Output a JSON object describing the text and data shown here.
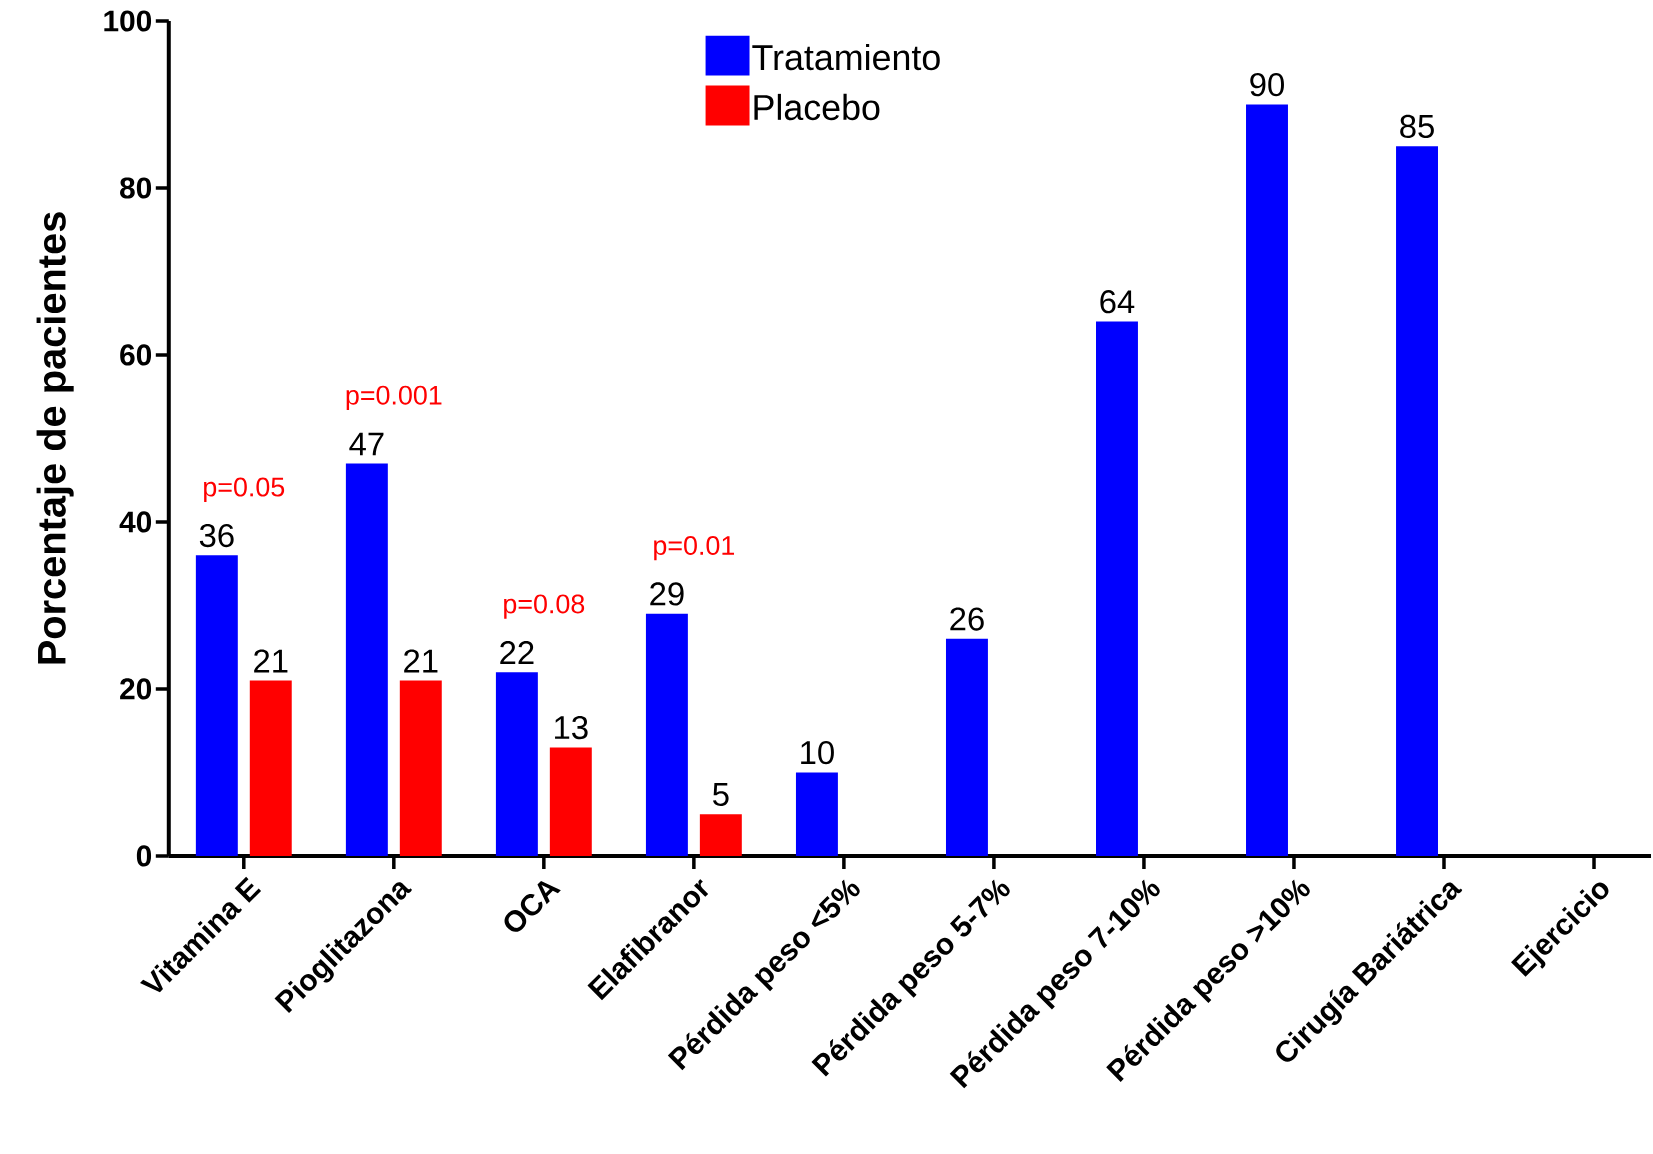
{
  "chart_data": {
    "type": "bar",
    "ylabel": "Porcentaje de pacientes",
    "categories": [
      "Vitamina E",
      "Pioglitazona",
      "OCA",
      "Elafibranor",
      "Pérdida peso <5%",
      "Pérdida peso 5-7%",
      "Pérdida peso 7-10%",
      "Pérdida peso >10%",
      "Cirugía Bariátrica",
      "Ejercicio"
    ],
    "series": [
      {
        "name": "Tratamiento",
        "color": "#0000ff",
        "values": [
          36,
          47,
          22,
          29,
          10,
          26,
          64,
          90,
          85,
          null
        ]
      },
      {
        "name": "Placebo",
        "color": "#ff0000",
        "values": [
          21,
          21,
          13,
          5,
          null,
          null,
          null,
          null,
          null,
          null
        ]
      }
    ],
    "ylim": [
      0,
      100
    ],
    "yticks": [
      0,
      20,
      40,
      60,
      80,
      100
    ],
    "legend": "top",
    "data_labels": true,
    "annotations": [
      "p=0.05",
      "p=0.001",
      "p=0.08",
      "p=0.01"
    ]
  }
}
